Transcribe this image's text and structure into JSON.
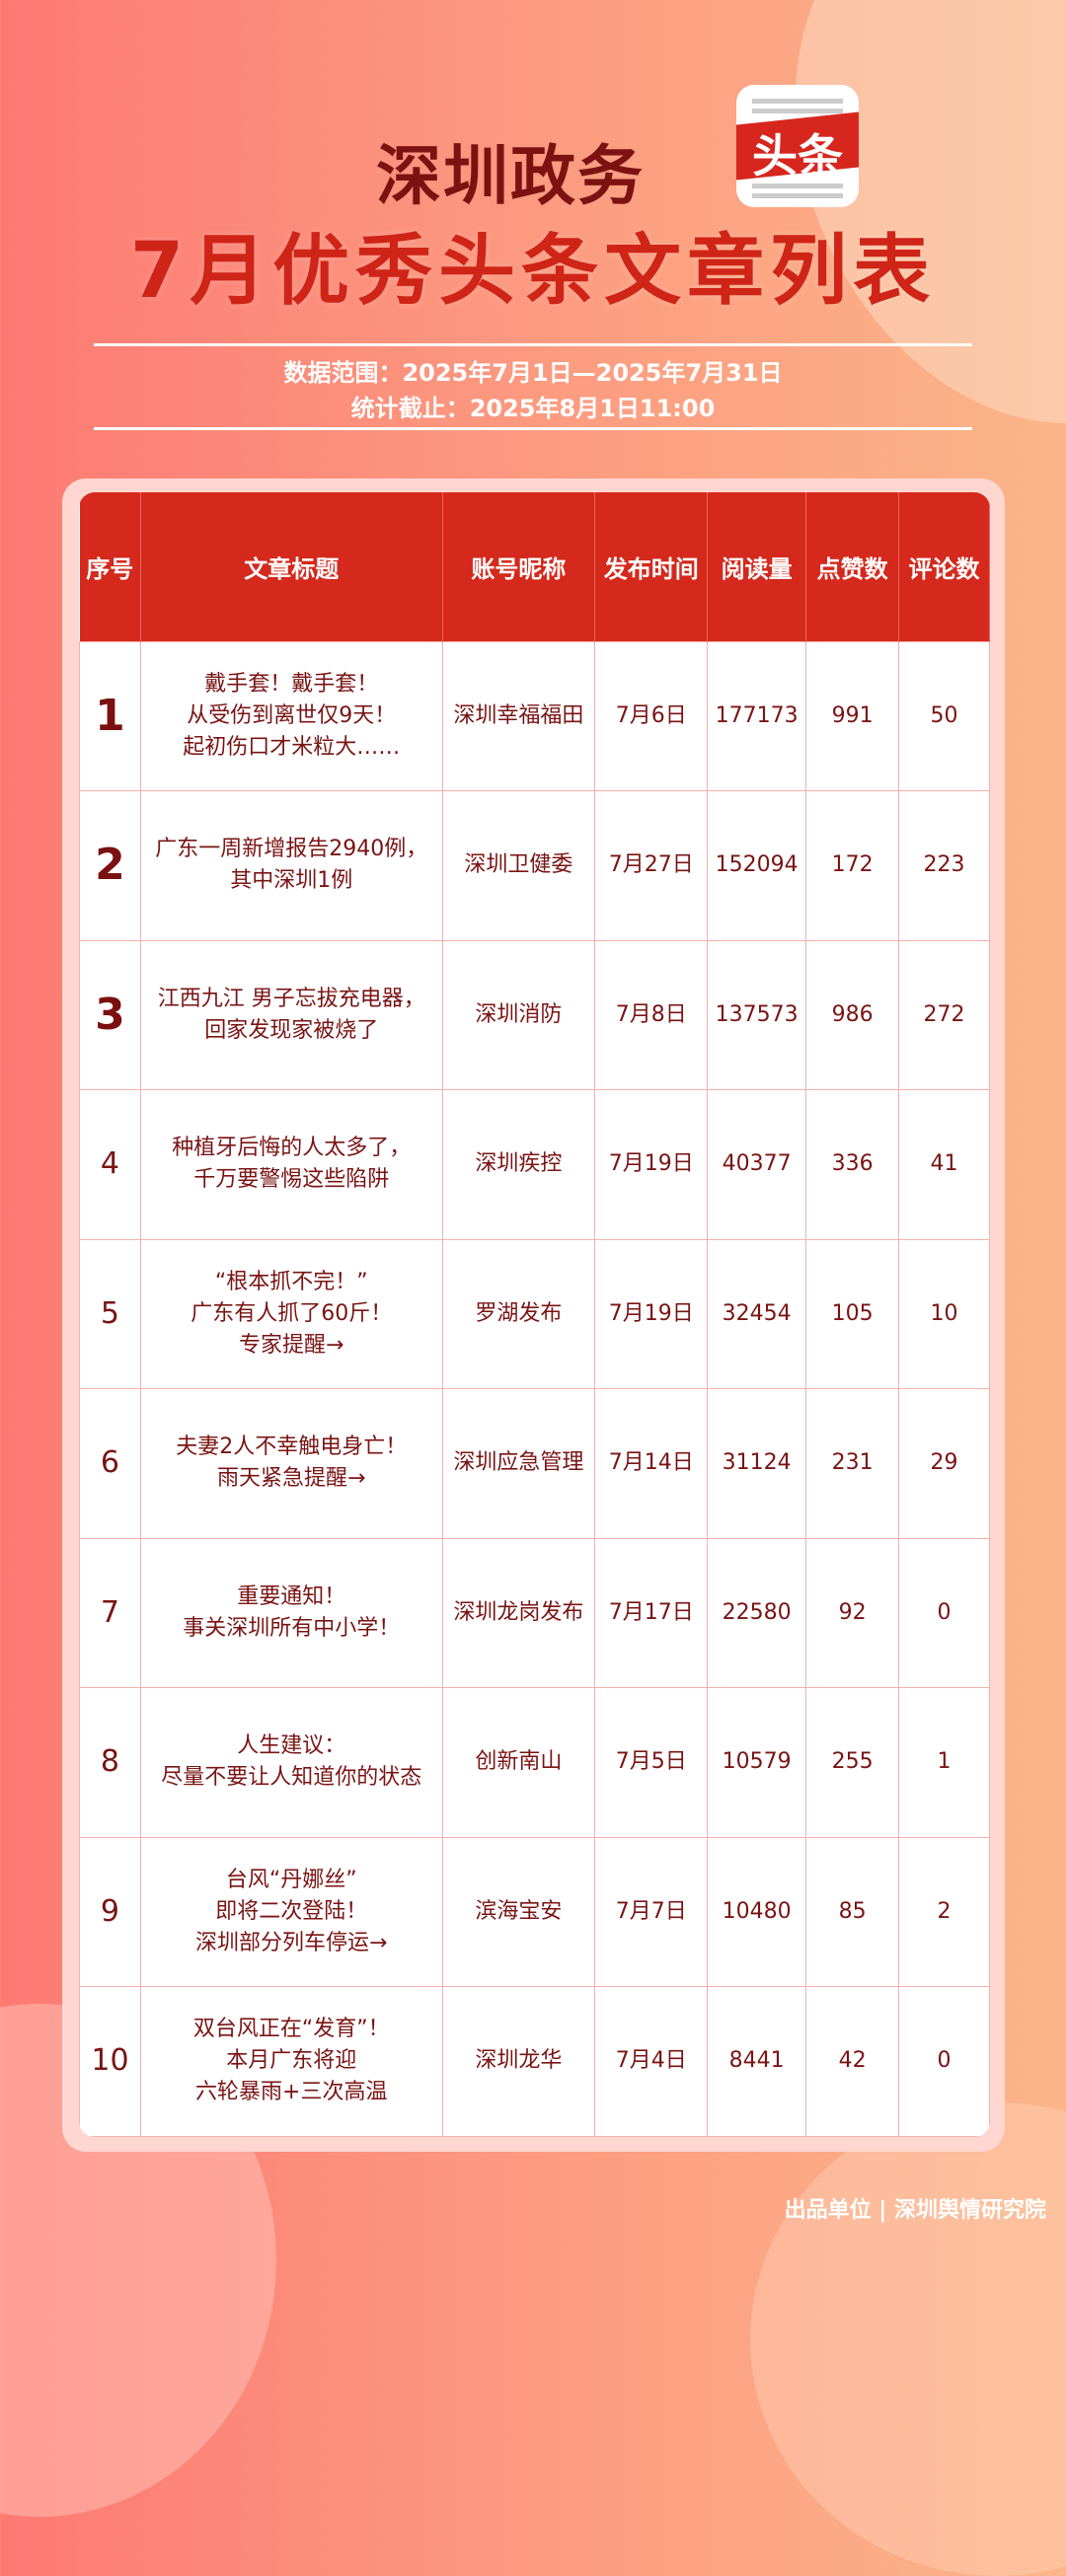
{
  "header": {
    "title1": "深圳政务",
    "logo_text": "头条",
    "title2": "7月优秀头条文章列表",
    "range": "数据范围：2025年7月1日—2025年7月31日",
    "cutoff": "统计截止：2025年8月1日11:00"
  },
  "table": {
    "columns": [
      "序号",
      "文章标题",
      "账号昵称",
      "发布时间",
      "阅读量",
      "点赞数",
      "评论数"
    ],
    "rows": [
      {
        "rank": "1",
        "title": "戴手套！戴手套！\n从受伤到离世仅9天！\n起初伤口才米粒大……",
        "account": "深圳幸福福田",
        "date": "7月6日",
        "reads": "177173",
        "likes": "991",
        "comments": "50"
      },
      {
        "rank": "2",
        "title": "广东一周新增报告2940例，\n其中深圳1例",
        "account": "深圳卫健委",
        "date": "7月27日",
        "reads": "152094",
        "likes": "172",
        "comments": "223"
      },
      {
        "rank": "3",
        "title": "江西九江 男子忘拔充电器，\n回家发现家被烧了",
        "account": "深圳消防",
        "date": "7月8日",
        "reads": "137573",
        "likes": "986",
        "comments": "272"
      },
      {
        "rank": "4",
        "title": "种植牙后悔的人太多了，\n千万要警惕这些陷阱",
        "account": "深圳疾控",
        "date": "7月19日",
        "reads": "40377",
        "likes": "336",
        "comments": "41"
      },
      {
        "rank": "5",
        "title": "“根本抓不完！”\n广东有人抓了60斤！\n专家提醒→",
        "account": "罗湖发布",
        "date": "7月19日",
        "reads": "32454",
        "likes": "105",
        "comments": "10"
      },
      {
        "rank": "6",
        "title": "夫妻2人不幸触电身亡！\n雨天紧急提醒→",
        "account": "深圳应急管理",
        "date": "7月14日",
        "reads": "31124",
        "likes": "231",
        "comments": "29"
      },
      {
        "rank": "7",
        "title": "重要通知！\n事关深圳所有中小学！",
        "account": "深圳龙岗发布",
        "date": "7月17日",
        "reads": "22580",
        "likes": "92",
        "comments": "0"
      },
      {
        "rank": "8",
        "title": "人生建议：\n尽量不要让人知道你的状态",
        "account": "创新南山",
        "date": "7月5日",
        "reads": "10579",
        "likes": "255",
        "comments": "1"
      },
      {
        "rank": "9",
        "title": "台风“丹娜丝”\n即将二次登陆！\n深圳部分列车停运→",
        "account": "滨海宝安",
        "date": "7月7日",
        "reads": "10480",
        "likes": "85",
        "comments": "2"
      },
      {
        "rank": "10",
        "title": "双台风正在“发育”！\n本月广东将迎\n六轮暴雨+三次高温",
        "account": "深圳龙华",
        "date": "7月4日",
        "reads": "8441",
        "likes": "42",
        "comments": "0"
      }
    ]
  },
  "footer": "出品单位 | 深圳舆情研究院"
}
